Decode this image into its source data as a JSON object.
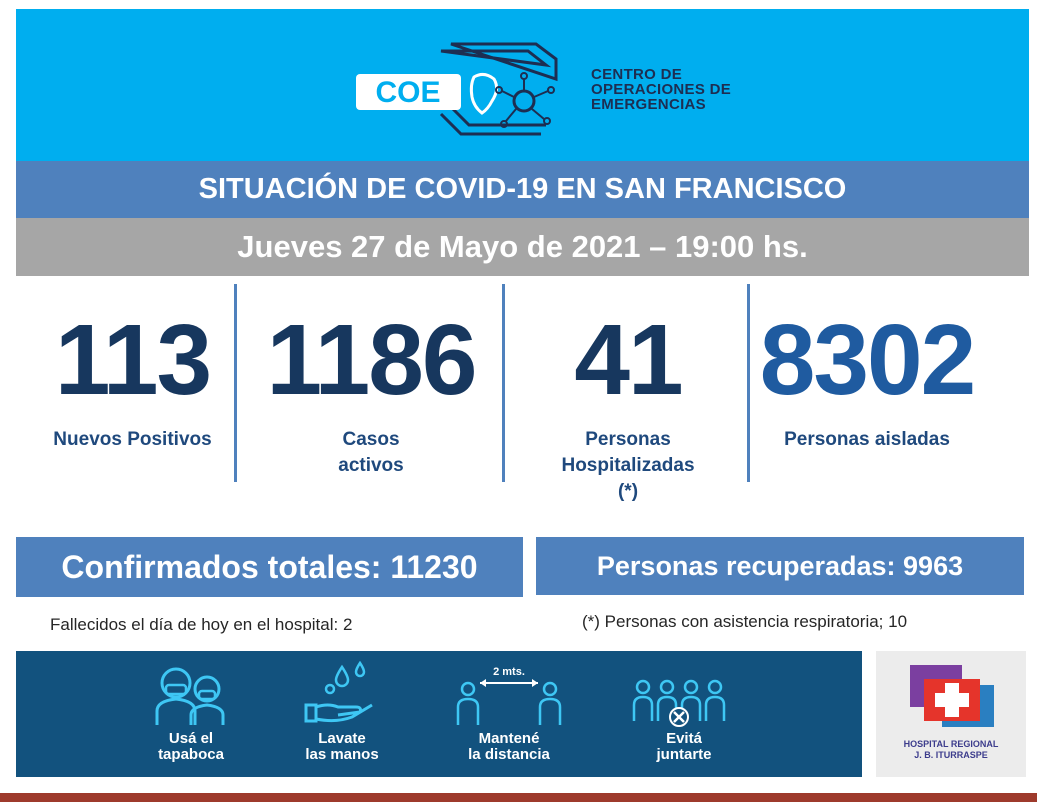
{
  "header": {
    "logo_text": "COE",
    "org_name_lines": [
      "CENTRO DE",
      "OPERACIONES DE",
      "EMERGENCIAS"
    ]
  },
  "title": "SITUACIÓN DE COVID-19 EN SAN FRANCISCO",
  "date": "Jueves 27 de Mayo de 2021 – 19:00 hs.",
  "stats": [
    {
      "value": "113",
      "label_lines": [
        "Nuevos Positivos"
      ]
    },
    {
      "value": "1186",
      "label_lines": [
        "Casos",
        "activos"
      ]
    },
    {
      "value": "41",
      "label_lines": [
        "Personas",
        "Hospitalizadas",
        "(*)"
      ]
    },
    {
      "value": "8302",
      "label_lines": [
        "Personas aisladas"
      ]
    }
  ],
  "confirmados": "Confirmados totales: 11230",
  "recuperados": "Personas recuperadas: 9963",
  "fallecidos_note": "Fallecidos el día de hoy en el hospital: 2",
  "asistencia_note": "(*) Personas con asistencia respiratoria; 10",
  "tips": [
    {
      "icon": "mask-people-icon",
      "lines": [
        "Usá el",
        "tapaboca"
      ]
    },
    {
      "icon": "wash-hands-icon",
      "lines": [
        "Lavate",
        "las manos"
      ]
    },
    {
      "icon": "distance-icon",
      "distance_label": "2 mts.",
      "lines": [
        "Mantené",
        "la distancia"
      ]
    },
    {
      "icon": "no-crowd-icon",
      "lines": [
        "Evitá",
        "juntarte"
      ]
    }
  ],
  "hospital": {
    "lines": [
      "HOSPITAL REGIONAL",
      "J. B. ITURRASPE"
    ]
  },
  "colors": {
    "header_bg": "#00aeef",
    "title_bg": "#4f81bd",
    "date_bg": "#a6a6a6",
    "stat_value": "#17375e",
    "banner_bg": "#12527e"
  }
}
